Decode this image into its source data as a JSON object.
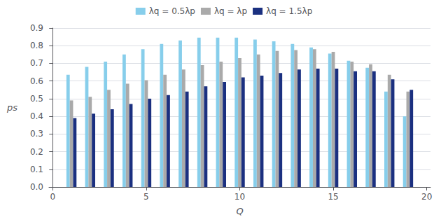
{
  "chart_data": {
    "type": "bar",
    "xlabel": "Q",
    "ylabel": "ps",
    "x": [
      1,
      2,
      3,
      4,
      5,
      6,
      7,
      8,
      9,
      10,
      11,
      12,
      13,
      14,
      15,
      16,
      17,
      18,
      19
    ],
    "series": [
      {
        "name": "λq = 0.5λp",
        "color": "#87CEEB",
        "values": [
          0.635,
          0.68,
          0.71,
          0.75,
          0.78,
          0.81,
          0.83,
          0.845,
          0.845,
          0.845,
          0.835,
          0.825,
          0.81,
          0.79,
          0.755,
          0.715,
          0.675,
          0.54,
          0.4
        ]
      },
      {
        "name": "λq = λp",
        "color": "#AAAAAA",
        "values": [
          0.49,
          0.51,
          0.55,
          0.585,
          0.605,
          0.635,
          0.665,
          0.69,
          0.71,
          0.73,
          0.75,
          0.77,
          0.775,
          0.78,
          0.765,
          0.71,
          0.695,
          0.635,
          0.54
        ]
      },
      {
        "name": "λq = 1.5λp",
        "color": "#1B3080",
        "values": [
          0.39,
          0.415,
          0.44,
          0.47,
          0.5,
          0.52,
          0.54,
          0.57,
          0.595,
          0.62,
          0.63,
          0.645,
          0.665,
          0.67,
          0.67,
          0.655,
          0.655,
          0.61,
          0.55
        ]
      }
    ],
    "xlim": [
      -0.2,
      20.2
    ],
    "xticks": [
      0,
      5,
      10,
      15,
      20
    ],
    "ylim": [
      0.0,
      0.9
    ],
    "yticks": [
      {
        "value": 0,
        "label": "0.0"
      },
      0.1,
      0.2,
      0.3,
      0.4,
      0.5,
      0.6,
      0.7,
      0.8,
      0.9
    ],
    "grid": true,
    "legend": "top"
  }
}
